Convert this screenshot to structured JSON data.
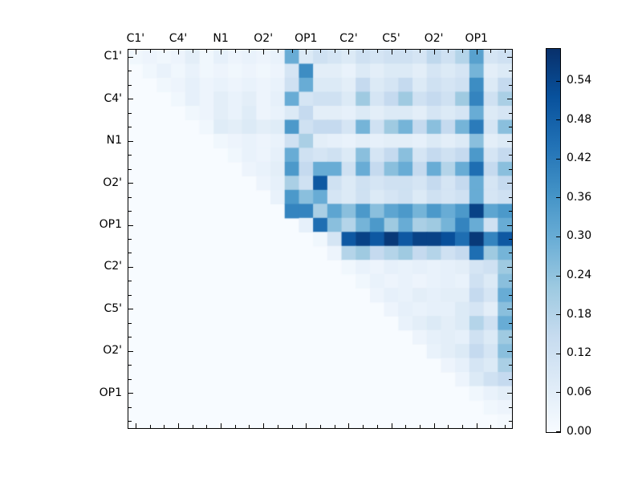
{
  "chart_data": {
    "type": "heatmap",
    "title": "",
    "n": 27,
    "x_tick_labels": [
      "C1'",
      "C4'",
      "N1",
      "O2'",
      "OP1",
      "C2'",
      "C5'",
      "O2'",
      "OP1"
    ],
    "y_tick_labels": [
      "C1'",
      "C4'",
      "N1",
      "O2'",
      "OP1",
      "C2'",
      "C5'",
      "O2'",
      "OP1"
    ],
    "label_every_n_cells": 3,
    "vmin": 0.0,
    "vmax": 0.59,
    "colormap": "Blues",
    "colormap_stops": [
      [
        0.0,
        "#f7fbff"
      ],
      [
        0.125,
        "#deebf7"
      ],
      [
        0.25,
        "#c6dbef"
      ],
      [
        0.375,
        "#9ecae1"
      ],
      [
        0.5,
        "#6baed6"
      ],
      [
        0.625,
        "#4292c6"
      ],
      [
        0.75,
        "#2171b5"
      ],
      [
        0.875,
        "#08519c"
      ],
      [
        1.0,
        "#08306b"
      ]
    ],
    "grid": false,
    "legend_position": "colorbar-right",
    "colorbar_tick_labels": [
      "0.00",
      "0.06",
      "0.12",
      "0.18",
      "0.24",
      "0.30",
      "0.36",
      "0.42",
      "0.48",
      "0.54"
    ],
    "colorbar_tick_values": [
      0.0,
      0.06,
      0.12,
      0.18,
      0.24,
      0.3,
      0.36,
      0.42,
      0.48,
      0.54
    ],
    "values": [
      [
        0.02,
        0.03,
        0.02,
        0.03,
        0.06,
        0.02,
        0.05,
        0.03,
        0.04,
        0.03,
        0.04,
        0.3,
        0.08,
        0.12,
        0.1,
        0.08,
        0.12,
        0.1,
        0.12,
        0.12,
        0.1,
        0.16,
        0.12,
        0.18,
        0.33,
        0.1,
        0.12
      ],
      [
        0,
        0.02,
        0.04,
        0.02,
        0.04,
        0.02,
        0.03,
        0.02,
        0.03,
        0.02,
        0.03,
        0.1,
        0.38,
        0.06,
        0.06,
        0.04,
        0.08,
        0.06,
        0.08,
        0.08,
        0.06,
        0.1,
        0.08,
        0.1,
        0.28,
        0.06,
        0.08
      ],
      [
        0,
        0,
        0.02,
        0.03,
        0.05,
        0.03,
        0.04,
        0.03,
        0.04,
        0.03,
        0.04,
        0.12,
        0.3,
        0.08,
        0.08,
        0.06,
        0.15,
        0.08,
        0.1,
        0.15,
        0.08,
        0.12,
        0.1,
        0.12,
        0.38,
        0.08,
        0.15
      ],
      [
        0,
        0,
        0,
        0.02,
        0.05,
        0.03,
        0.06,
        0.04,
        0.06,
        0.03,
        0.05,
        0.3,
        0.1,
        0.12,
        0.12,
        0.08,
        0.22,
        0.1,
        0.15,
        0.22,
        0.12,
        0.15,
        0.12,
        0.22,
        0.4,
        0.12,
        0.2
      ],
      [
        0,
        0,
        0,
        0,
        0.02,
        0.03,
        0.06,
        0.04,
        0.07,
        0.03,
        0.04,
        0.08,
        0.15,
        0.06,
        0.06,
        0.05,
        0.08,
        0.06,
        0.08,
        0.08,
        0.06,
        0.1,
        0.08,
        0.1,
        0.3,
        0.08,
        0.1
      ],
      [
        0,
        0,
        0,
        0,
        0,
        0.02,
        0.07,
        0.06,
        0.08,
        0.06,
        0.07,
        0.35,
        0.12,
        0.15,
        0.15,
        0.1,
        0.28,
        0.12,
        0.22,
        0.28,
        0.15,
        0.25,
        0.15,
        0.28,
        0.42,
        0.1,
        0.25
      ],
      [
        0,
        0,
        0,
        0,
        0,
        0,
        0.02,
        0.03,
        0.04,
        0.03,
        0.04,
        0.12,
        0.2,
        0.06,
        0.05,
        0.04,
        0.06,
        0.05,
        0.06,
        0.06,
        0.05,
        0.08,
        0.06,
        0.08,
        0.25,
        0.06,
        0.08
      ],
      [
        0,
        0,
        0,
        0,
        0,
        0,
        0,
        0.02,
        0.04,
        0.03,
        0.05,
        0.3,
        0.12,
        0.1,
        0.12,
        0.08,
        0.25,
        0.1,
        0.15,
        0.25,
        0.1,
        0.15,
        0.12,
        0.15,
        0.35,
        0.1,
        0.15
      ],
      [
        0,
        0,
        0,
        0,
        0,
        0,
        0,
        0,
        0.03,
        0.04,
        0.06,
        0.35,
        0.15,
        0.3,
        0.3,
        0.12,
        0.3,
        0.15,
        0.25,
        0.3,
        0.15,
        0.3,
        0.18,
        0.3,
        0.45,
        0.15,
        0.25
      ],
      [
        0,
        0,
        0,
        0,
        0,
        0,
        0,
        0,
        0,
        0.03,
        0.05,
        0.2,
        0.12,
        0.5,
        0.12,
        0.08,
        0.12,
        0.1,
        0.12,
        0.12,
        0.1,
        0.15,
        0.1,
        0.15,
        0.3,
        0.1,
        0.15
      ],
      [
        0,
        0,
        0,
        0,
        0,
        0,
        0,
        0,
        0,
        0,
        0.04,
        0.35,
        0.25,
        0.3,
        0.1,
        0.08,
        0.12,
        0.08,
        0.1,
        0.12,
        0.08,
        0.12,
        0.1,
        0.12,
        0.3,
        0.1,
        0.12
      ],
      [
        0,
        0,
        0,
        0,
        0,
        0,
        0,
        0,
        0,
        0,
        0,
        0.4,
        0.4,
        0.2,
        0.32,
        0.25,
        0.35,
        0.25,
        0.32,
        0.35,
        0.28,
        0.35,
        0.3,
        0.35,
        0.55,
        0.32,
        0.35
      ],
      [
        0,
        0,
        0,
        0,
        0,
        0,
        0,
        0,
        0,
        0,
        0,
        0,
        0.05,
        0.45,
        0.25,
        0.18,
        0.28,
        0.35,
        0.22,
        0.3,
        0.2,
        0.22,
        0.28,
        0.4,
        0.3,
        0.12,
        0.3
      ],
      [
        0,
        0,
        0,
        0,
        0,
        0,
        0,
        0,
        0,
        0,
        0,
        0,
        0,
        0.02,
        0.1,
        0.5,
        0.55,
        0.5,
        0.57,
        0.5,
        0.55,
        0.55,
        0.52,
        0.45,
        0.57,
        0.4,
        0.5
      ],
      [
        0,
        0,
        0,
        0,
        0,
        0,
        0,
        0,
        0,
        0,
        0,
        0,
        0,
        0,
        0.03,
        0.18,
        0.22,
        0.15,
        0.18,
        0.22,
        0.15,
        0.18,
        0.12,
        0.15,
        0.45,
        0.22,
        0.28
      ],
      [
        0,
        0,
        0,
        0,
        0,
        0,
        0,
        0,
        0,
        0,
        0,
        0,
        0,
        0,
        0,
        0.02,
        0.04,
        0.03,
        0.05,
        0.04,
        0.05,
        0.04,
        0.05,
        0.06,
        0.1,
        0.12,
        0.22
      ],
      [
        0,
        0,
        0,
        0,
        0,
        0,
        0,
        0,
        0,
        0,
        0,
        0,
        0,
        0,
        0,
        0,
        0.02,
        0.04,
        0.03,
        0.04,
        0.03,
        0.04,
        0.05,
        0.04,
        0.12,
        0.08,
        0.25
      ],
      [
        0,
        0,
        0,
        0,
        0,
        0,
        0,
        0,
        0,
        0,
        0,
        0,
        0,
        0,
        0,
        0,
        0,
        0.03,
        0.05,
        0.04,
        0.06,
        0.05,
        0.06,
        0.06,
        0.15,
        0.1,
        0.3
      ],
      [
        0,
        0,
        0,
        0,
        0,
        0,
        0,
        0,
        0,
        0,
        0,
        0,
        0,
        0,
        0,
        0,
        0,
        0,
        0.03,
        0.05,
        0.04,
        0.05,
        0.05,
        0.08,
        0.1,
        0.06,
        0.25
      ],
      [
        0,
        0,
        0,
        0,
        0,
        0,
        0,
        0,
        0,
        0,
        0,
        0,
        0,
        0,
        0,
        0,
        0,
        0,
        0,
        0.04,
        0.06,
        0.08,
        0.06,
        0.08,
        0.18,
        0.12,
        0.3
      ],
      [
        0,
        0,
        0,
        0,
        0,
        0,
        0,
        0,
        0,
        0,
        0,
        0,
        0,
        0,
        0,
        0,
        0,
        0,
        0,
        0,
        0.03,
        0.05,
        0.06,
        0.05,
        0.12,
        0.08,
        0.22
      ],
      [
        0,
        0,
        0,
        0,
        0,
        0,
        0,
        0,
        0,
        0,
        0,
        0,
        0,
        0,
        0,
        0,
        0,
        0,
        0,
        0,
        0,
        0.04,
        0.06,
        0.08,
        0.15,
        0.1,
        0.25
      ],
      [
        0,
        0,
        0,
        0,
        0,
        0,
        0,
        0,
        0,
        0,
        0,
        0,
        0,
        0,
        0,
        0,
        0,
        0,
        0,
        0,
        0,
        0,
        0.03,
        0.05,
        0.1,
        0.08,
        0.2
      ],
      [
        0,
        0,
        0,
        0,
        0,
        0,
        0,
        0,
        0,
        0,
        0,
        0,
        0,
        0,
        0,
        0,
        0,
        0,
        0,
        0,
        0,
        0,
        0,
        0.03,
        0.08,
        0.12,
        0.15
      ],
      [
        0,
        0,
        0,
        0,
        0,
        0,
        0,
        0,
        0,
        0,
        0,
        0,
        0,
        0,
        0,
        0,
        0,
        0,
        0,
        0,
        0,
        0,
        0,
        0,
        0.02,
        0.04,
        0.06
      ],
      [
        0,
        0,
        0,
        0,
        0,
        0,
        0,
        0,
        0,
        0,
        0,
        0,
        0,
        0,
        0,
        0,
        0,
        0,
        0,
        0,
        0,
        0,
        0,
        0,
        0,
        0.02,
        0.03
      ],
      [
        0,
        0,
        0,
        0,
        0,
        0,
        0,
        0,
        0,
        0,
        0,
        0,
        0,
        0,
        0,
        0,
        0,
        0,
        0,
        0,
        0,
        0,
        0,
        0,
        0,
        0,
        0.01
      ]
    ]
  }
}
